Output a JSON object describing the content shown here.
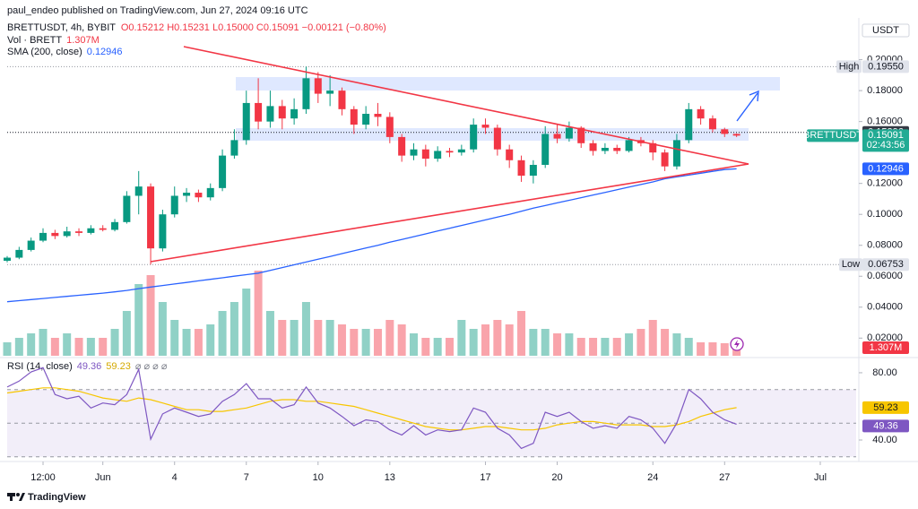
{
  "header": {
    "publisher": "paul_endeo published on TradingView.com, Jun 27, 2024 09:16 UTC",
    "brand": "TradingView"
  },
  "chart_data": {
    "type": "candlestick",
    "symbol": "BRETTUSDT, 4h, BYBIT",
    "ohlc_text": "O0.15212 H0.15231 L0.15000 C0.15091 −0.00121 (−0.80%)",
    "currency": "USDT",
    "up_color": "#089981",
    "down_color": "#f23645",
    "xlim": [
      -3,
      32.5
    ],
    "xticks": [
      {
        "value": -1.5,
        "label": "12:00"
      },
      {
        "value": 1,
        "label": "Jun"
      },
      4,
      7,
      10,
      13,
      17,
      20,
      24,
      27,
      {
        "value": 31,
        "label": "Jul"
      }
    ],
    "ylim": [
      0.008,
      0.227
    ],
    "yticks": [
      {
        "value": 0.2,
        "label": "0.20000"
      },
      {
        "value": 0.18,
        "label": "0.18000"
      },
      {
        "value": 0.16,
        "label": "0.16000"
      },
      {
        "value": 0.12,
        "label": "0.12000"
      },
      {
        "value": 0.1,
        "label": "0.10000"
      },
      {
        "value": 0.08,
        "label": "0.08000"
      },
      {
        "value": 0.06,
        "label": "0.06000"
      },
      {
        "value": 0.04,
        "label": "0.04000"
      },
      {
        "value": 0.02,
        "label": "0.02000"
      }
    ],
    "grid": false,
    "candles": {
      "x": [
        -3,
        -2.5,
        -2,
        -1.5,
        -1,
        -0.5,
        0,
        0.5,
        1,
        1.5,
        2,
        2.5,
        3,
        3.5,
        4,
        4.5,
        5,
        5.5,
        6,
        6.5,
        7,
        7.5,
        8,
        8.5,
        9,
        9.5,
        10,
        10.5,
        11,
        11.5,
        12,
        12.5,
        13,
        13.5,
        14,
        14.5,
        15,
        15.5,
        16,
        16.5,
        17,
        17.5,
        18,
        18.5,
        19,
        19.5,
        20,
        20.5,
        21,
        21.5,
        22,
        22.5,
        23,
        23.5,
        24,
        24.5,
        25,
        25.5,
        26,
        26.5,
        27,
        27.5
      ],
      "open": [
        0.07,
        0.072,
        0.077,
        0.083,
        0.088,
        0.086,
        0.089,
        0.088,
        0.091,
        0.09,
        0.095,
        0.112,
        0.118,
        0.078,
        0.1,
        0.112,
        0.114,
        0.111,
        0.117,
        0.138,
        0.148,
        0.172,
        0.16,
        0.17,
        0.162,
        0.168,
        0.188,
        0.178,
        0.18,
        0.168,
        0.158,
        0.165,
        0.163,
        0.15,
        0.138,
        0.142,
        0.136,
        0.141,
        0.14,
        0.142,
        0.158,
        0.156,
        0.142,
        0.135,
        0.125,
        0.132,
        0.152,
        0.149,
        0.156,
        0.146,
        0.141,
        0.143,
        0.141,
        0.148,
        0.146,
        0.14,
        0.131,
        0.148,
        0.168,
        0.162,
        0.155,
        0.152
      ],
      "high": [
        0.073,
        0.079,
        0.085,
        0.091,
        0.09,
        0.092,
        0.091,
        0.093,
        0.093,
        0.097,
        0.115,
        0.128,
        0.12,
        0.103,
        0.118,
        0.117,
        0.116,
        0.12,
        0.142,
        0.155,
        0.18,
        0.188,
        0.18,
        0.174,
        0.175,
        0.1955,
        0.192,
        0.19,
        0.182,
        0.17,
        0.17,
        0.172,
        0.166,
        0.152,
        0.146,
        0.145,
        0.144,
        0.143,
        0.145,
        0.162,
        0.162,
        0.158,
        0.145,
        0.138,
        0.135,
        0.157,
        0.158,
        0.16,
        0.157,
        0.148,
        0.146,
        0.145,
        0.15,
        0.15,
        0.148,
        0.142,
        0.152,
        0.172,
        0.17,
        0.164,
        0.156,
        0.15231
      ],
      "low": [
        0.069,
        0.071,
        0.076,
        0.082,
        0.084,
        0.085,
        0.086,
        0.087,
        0.089,
        0.089,
        0.094,
        0.1,
        0.06753,
        0.076,
        0.098,
        0.108,
        0.108,
        0.109,
        0.115,
        0.136,
        0.145,
        0.155,
        0.156,
        0.155,
        0.158,
        0.165,
        0.172,
        0.17,
        0.164,
        0.152,
        0.155,
        0.157,
        0.146,
        0.134,
        0.135,
        0.131,
        0.134,
        0.137,
        0.138,
        0.14,
        0.152,
        0.138,
        0.13,
        0.121,
        0.12,
        0.13,
        0.146,
        0.147,
        0.143,
        0.138,
        0.139,
        0.139,
        0.14,
        0.144,
        0.135,
        0.128,
        0.129,
        0.146,
        0.158,
        0.153,
        0.15,
        0.15
      ],
      "close": [
        0.072,
        0.077,
        0.083,
        0.088,
        0.086,
        0.089,
        0.088,
        0.091,
        0.09,
        0.095,
        0.112,
        0.118,
        0.078,
        0.1,
        0.112,
        0.114,
        0.111,
        0.117,
        0.138,
        0.148,
        0.172,
        0.16,
        0.17,
        0.162,
        0.168,
        0.188,
        0.178,
        0.18,
        0.168,
        0.158,
        0.165,
        0.163,
        0.15,
        0.138,
        0.142,
        0.136,
        0.141,
        0.14,
        0.142,
        0.158,
        0.156,
        0.142,
        0.135,
        0.125,
        0.132,
        0.152,
        0.149,
        0.156,
        0.146,
        0.141,
        0.143,
        0.141,
        0.148,
        0.146,
        0.14,
        0.131,
        0.148,
        0.168,
        0.162,
        0.155,
        0.152,
        0.15091
      ]
    },
    "volume": {
      "name": "Vol · BRETT",
      "last_label": "1.307M",
      "values": [
        1.5,
        2,
        2.5,
        3,
        2,
        2.5,
        2,
        2,
        2,
        3,
        5,
        8,
        9,
        6,
        4,
        3,
        3,
        3.5,
        5,
        6,
        7.5,
        9.5,
        5,
        4,
        4,
        6,
        4,
        4,
        3.5,
        3,
        3,
        3,
        4,
        3.5,
        2.5,
        2,
        2,
        2,
        4,
        3,
        3.5,
        4,
        3.5,
        5,
        3,
        3,
        2.5,
        2.5,
        2,
        2,
        2,
        2,
        2.5,
        3,
        4,
        3,
        2.5,
        2,
        1.5,
        1.5,
        1.4,
        1.307
      ]
    },
    "sma": {
      "name": "SMA (200, close)",
      "color": "#2962ff",
      "values": [
        0.0435,
        0.0442,
        0.0449,
        0.0456,
        0.0463,
        0.047,
        0.0477,
        0.0484,
        0.0491,
        0.0499,
        0.0508,
        0.052,
        0.053,
        0.054,
        0.055,
        0.056,
        0.057,
        0.058,
        0.059,
        0.06,
        0.061,
        0.062,
        0.0638,
        0.0656,
        0.0674,
        0.0692,
        0.071,
        0.0728,
        0.0746,
        0.0764,
        0.0782,
        0.08,
        0.082,
        0.0838,
        0.0856,
        0.0874,
        0.0892,
        0.091,
        0.0928,
        0.0946,
        0.0964,
        0.0982,
        0.1,
        0.102,
        0.104,
        0.1057,
        0.1074,
        0.1091,
        0.1108,
        0.1125,
        0.1142,
        0.1159,
        0.1176,
        0.1193,
        0.121,
        0.123,
        0.1242,
        0.1254,
        0.1266,
        0.1278,
        0.129,
        0.12946
      ]
    },
    "high_marker": {
      "text": "High",
      "value": 0.1955,
      "label": "0.19550"
    },
    "low_marker": {
      "text": "Low",
      "value": 0.06753
    },
    "price_line": 0.15296,
    "last_price": {
      "name": "BRETTUSDT",
      "countdown": "02:43:56"
    },
    "rsi": {
      "name": "RSI (14, close)",
      "extra": "⌀ ⌀ ⌀ ⌀",
      "color": "#7e57c2",
      "ylim": [
        28.8,
        88.5
      ],
      "yticks": [
        {
          "value": 80,
          "label": "80.00"
        },
        {
          "value": 40,
          "label": "40.00"
        }
      ],
      "band": [
        30,
        70
      ],
      "levels": [
        70,
        50,
        30
      ],
      "values": [
        71.5,
        75,
        80.5,
        83,
        67,
        64.5,
        66,
        59,
        62,
        61,
        67,
        82,
        40.5,
        55.5,
        59,
        56.5,
        54,
        55.5,
        63,
        67,
        73.5,
        64.5,
        64.5,
        59,
        61,
        71.5,
        62,
        59,
        54,
        48.5,
        52,
        51,
        46,
        43,
        48.5,
        43,
        46,
        45,
        46,
        59,
        56.5,
        47,
        43,
        35,
        38,
        56.5,
        54,
        56.5,
        51,
        47,
        48.5,
        47,
        54,
        52,
        47,
        38,
        50,
        70,
        64.5,
        56.5,
        52,
        49.36
      ],
      "ma": {
        "color": "#f7c600",
        "values": [
          68,
          69,
          70,
          71,
          71,
          70,
          69,
          67,
          65,
          64,
          63,
          65,
          64,
          62,
          60,
          58,
          58,
          57,
          57,
          58,
          59,
          61,
          63,
          64,
          64,
          63,
          63,
          62,
          61,
          60,
          58,
          56,
          54,
          52,
          50,
          48,
          47,
          46,
          46,
          47,
          48,
          48,
          47,
          46,
          46,
          47,
          49,
          50,
          51,
          51,
          50,
          49,
          49,
          49,
          48,
          48,
          49,
          51,
          54,
          56,
          58,
          59.23
        ]
      }
    }
  }
}
